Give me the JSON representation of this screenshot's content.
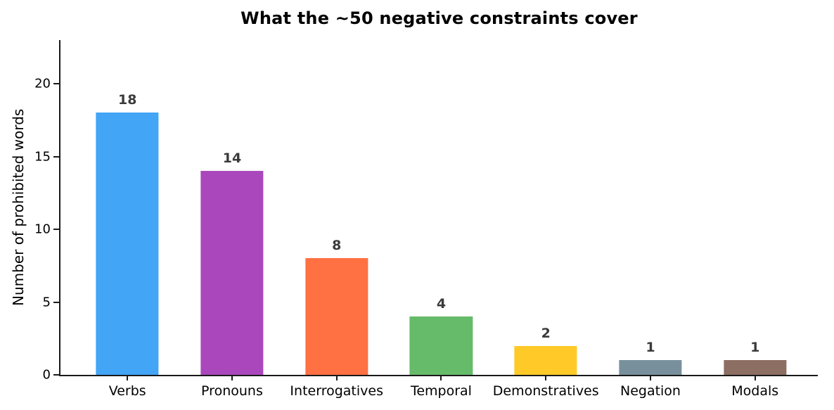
{
  "chart_data": {
    "type": "bar",
    "title": "What the ~50 negative constraints cover",
    "categories": [
      "Verbs",
      "Pronouns",
      "Interrogatives",
      "Temporal",
      "Demonstratives",
      "Negation",
      "Modals"
    ],
    "values": [
      18,
      14,
      8,
      4,
      2,
      1,
      1
    ],
    "value_labels": [
      "18",
      "14",
      "8",
      "4",
      "2",
      "1",
      "1"
    ],
    "bar_colors": [
      "#42a5f5",
      "#ab47bc",
      "#ff7043",
      "#66bb6a",
      "#ffca28",
      "#78909c",
      "#8d6e63"
    ],
    "xlabel": "",
    "ylabel": "Number of prohibited words",
    "yticks": [
      0,
      5,
      10,
      15,
      20
    ],
    "ylim": [
      0,
      23
    ],
    "xlim": [
      -0.64,
      6.6
    ],
    "bar_width_units": 0.6,
    "grid": false,
    "legend": "none",
    "value_label_color": "#3a3a3a",
    "axis_color": "#1a1a1a",
    "background": "#ffffff"
  }
}
